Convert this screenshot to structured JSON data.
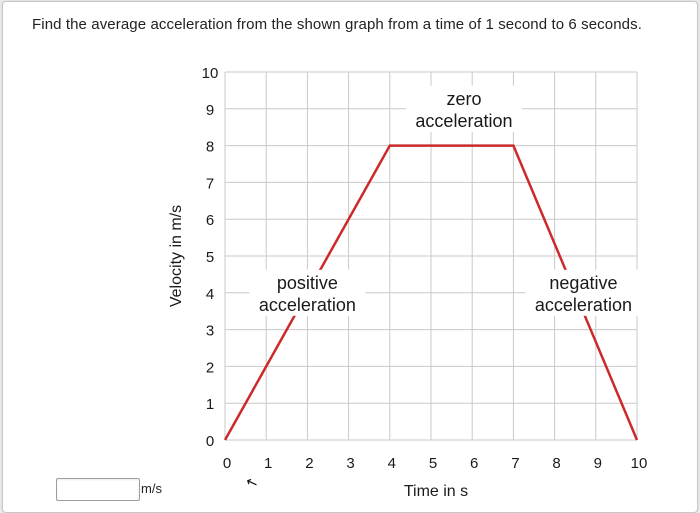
{
  "question": {
    "text": "Find the average acceleration from the shown graph from a time of 1 second to 6 seconds."
  },
  "answer": {
    "value": "",
    "unit": "m/s"
  },
  "chart_data": {
    "type": "line",
    "title": "",
    "xlabel": "Time in s",
    "ylabel": "Velocity in m/s",
    "xlim": [
      0,
      10
    ],
    "ylim": [
      0,
      10
    ],
    "grid": true,
    "x_ticks": [
      "0",
      "1",
      "2",
      "3",
      "4",
      "5",
      "6",
      "7",
      "8",
      "9",
      "10"
    ],
    "y_ticks": [
      "0",
      "1",
      "2",
      "3",
      "4",
      "5",
      "6",
      "7",
      "8",
      "9",
      "10"
    ],
    "series": [
      {
        "color": "#cc2a2a",
        "points": [
          [
            0,
            0
          ],
          [
            4,
            8
          ],
          [
            7,
            8
          ],
          [
            10,
            0
          ]
        ]
      }
    ],
    "annotations": [
      {
        "lines": [
          "positive",
          "acceleration"
        ],
        "at": [
          2,
          4
        ]
      },
      {
        "lines": [
          "zero",
          "acceleration"
        ],
        "at": [
          5.8,
          9
        ]
      },
      {
        "lines": [
          "negative",
          "acceleration"
        ],
        "at": [
          8.7,
          4
        ]
      }
    ]
  }
}
